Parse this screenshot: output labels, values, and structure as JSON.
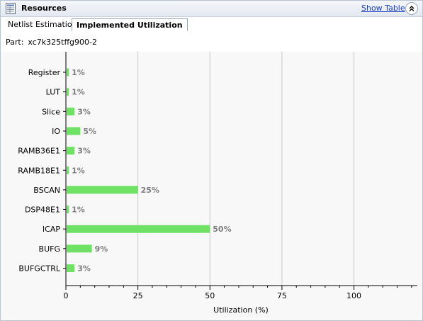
{
  "panel": {
    "title": "Resources",
    "show_table_label": "Show Table",
    "icons": {
      "panel": "resources-table-icon",
      "collapse": "double-chevron-up-icon"
    }
  },
  "tabs": [
    {
      "label": "Netlist Estimation",
      "active": false
    },
    {
      "label": "Implemented Utilization",
      "active": true
    }
  ],
  "part": {
    "label": "Part:",
    "value": "xc7k325tffg900-2"
  },
  "colors": {
    "bar": "#6fe266",
    "grid": "#c8c8c8",
    "label": "#7f7f7f",
    "background": "#f8f8f8"
  },
  "chart_data": {
    "type": "bar",
    "orientation": "horizontal",
    "categories": [
      "Register",
      "LUT",
      "Slice",
      "IO",
      "RAMB36E1",
      "RAMB18E1",
      "BSCAN",
      "DSP48E1",
      "ICAP",
      "BUFG",
      "BUFGCTRL"
    ],
    "values": [
      1,
      1,
      3,
      5,
      3,
      1,
      25,
      1,
      50,
      9,
      3
    ],
    "data_labels": [
      "1%",
      "1%",
      "3%",
      "5%",
      "3%",
      "1%",
      "25%",
      "1%",
      "50%",
      "9%",
      "3%"
    ],
    "xlabel": "Utilization (%)",
    "ylabel": "",
    "xlim": [
      0,
      122
    ],
    "xticks": [
      0,
      25,
      50,
      75,
      100
    ],
    "grid": "vertical"
  }
}
